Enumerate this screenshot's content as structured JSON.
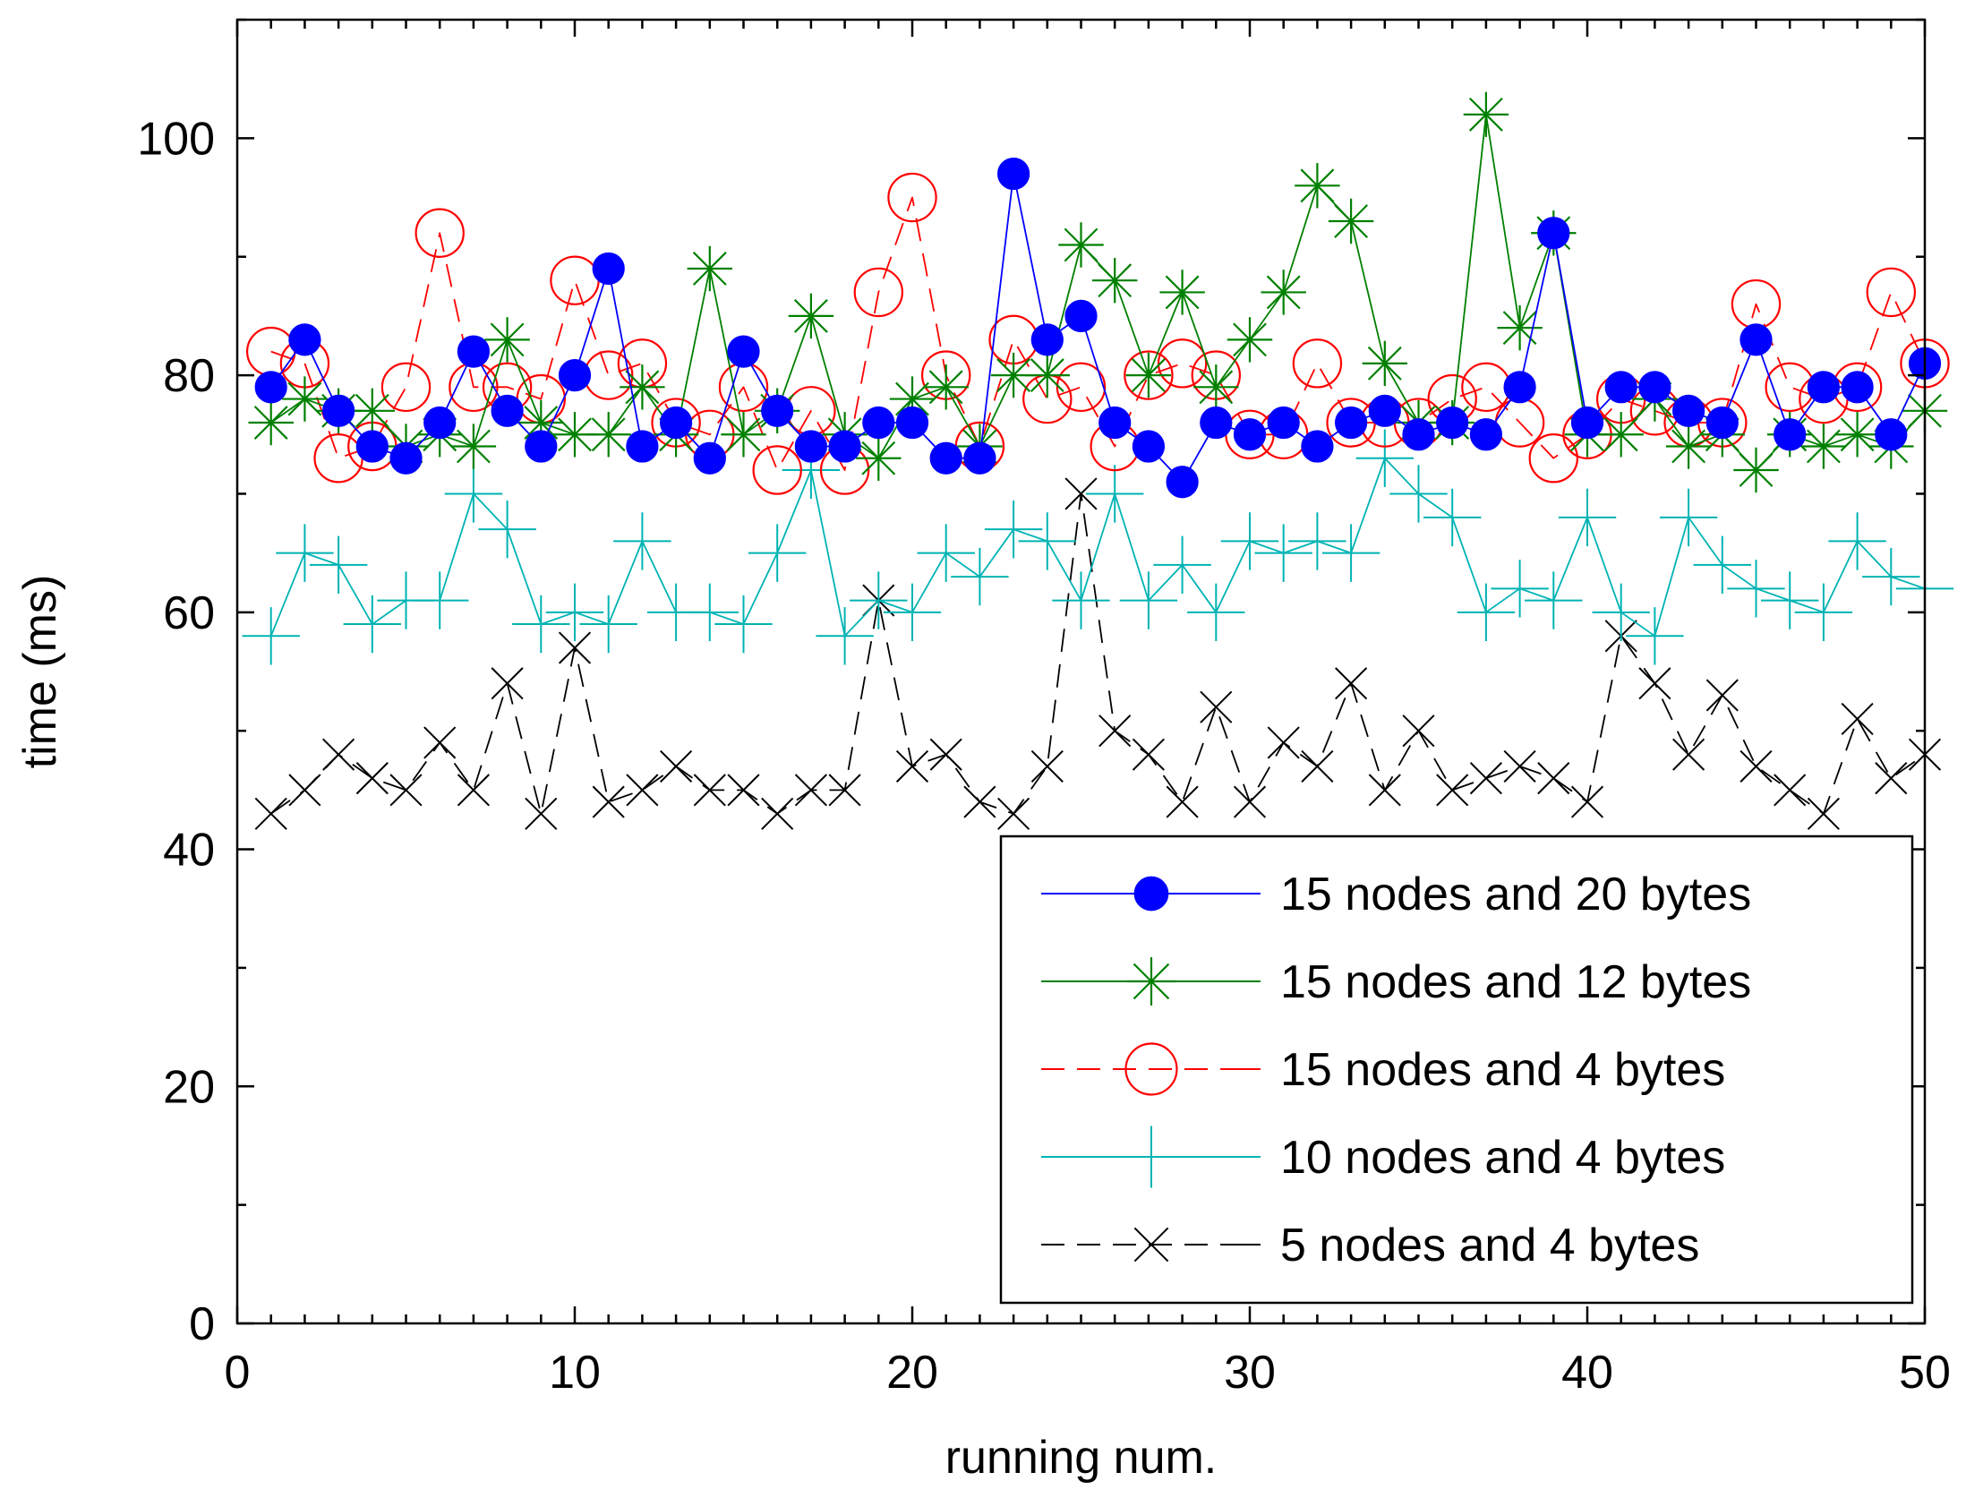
{
  "chart_data": {
    "type": "line",
    "title": "",
    "xlabel": "running num.",
    "ylabel": "time (ms)",
    "xlim": [
      0,
      50
    ],
    "ylim": [
      0,
      110
    ],
    "xticks": [
      0,
      10,
      20,
      30,
      40,
      50
    ],
    "yticks": [
      0,
      20,
      40,
      60,
      80,
      100
    ],
    "xtick_labels": [
      "0",
      "10",
      "20",
      "30",
      "40",
      "50"
    ],
    "ytick_labels": [
      "0",
      "20",
      "40",
      "60",
      "80",
      "100"
    ],
    "grid": false,
    "legend_position": "bottom-right",
    "x": [
      1,
      2,
      3,
      4,
      5,
      6,
      7,
      8,
      9,
      10,
      11,
      12,
      13,
      14,
      15,
      16,
      17,
      18,
      19,
      20,
      21,
      22,
      23,
      24,
      25,
      26,
      27,
      28,
      29,
      30,
      31,
      32,
      33,
      34,
      35,
      36,
      37,
      38,
      39,
      40,
      41,
      42,
      43,
      44,
      45,
      46,
      47,
      48,
      49,
      50
    ],
    "series": [
      {
        "name": "15 nodes and 20 bytes",
        "color": "#0000ff",
        "marker": "filled-circle",
        "dash": "solid",
        "values": [
          79,
          83,
          77,
          74,
          73,
          76,
          82,
          77,
          74,
          80,
          89,
          74,
          76,
          73,
          82,
          77,
          74,
          74,
          76,
          76,
          73,
          73,
          97,
          83,
          85,
          76,
          74,
          71,
          76,
          75,
          76,
          74,
          76,
          77,
          75,
          76,
          75,
          79,
          92,
          76,
          79,
          79,
          77,
          76,
          83,
          75,
          79,
          79,
          75,
          81
        ]
      },
      {
        "name": "15 nodes and 12 bytes",
        "color": "#008000",
        "marker": "star",
        "dash": "solid",
        "values": [
          76,
          78,
          77,
          77,
          74,
          75,
          74,
          83,
          76,
          75,
          75,
          79,
          75,
          89,
          75,
          77,
          85,
          75,
          73,
          78,
          79,
          74,
          80,
          80,
          91,
          88,
          80,
          87,
          79,
          83,
          87,
          96,
          93,
          81,
          76,
          76,
          102,
          84,
          92,
          75,
          75,
          78,
          74,
          75,
          72,
          75,
          74,
          75,
          74,
          77
        ]
      },
      {
        "name": "15 nodes and 4 bytes",
        "color": "#ff0000",
        "marker": "open-circle",
        "dash": "dashed",
        "values": [
          82,
          81,
          73,
          74,
          79,
          92,
          79,
          79,
          78,
          88,
          80,
          81,
          76,
          75,
          79,
          72,
          77,
          72,
          87,
          95,
          80,
          74,
          83,
          78,
          79,
          74,
          80,
          81,
          80,
          75,
          75,
          81,
          76,
          76,
          76,
          78,
          79,
          76,
          73,
          75,
          78,
          77,
          76,
          76,
          86,
          79,
          78,
          79,
          87,
          81
        ]
      },
      {
        "name": "10 nodes and 4 bytes",
        "color": "#00b3b3",
        "marker": "plus",
        "dash": "solid",
        "values": [
          58,
          65,
          64,
          59,
          61,
          61,
          70,
          67,
          59,
          60,
          59,
          66,
          60,
          60,
          59,
          65,
          72,
          58,
          61,
          60,
          65,
          63,
          67,
          66,
          61,
          70,
          61,
          64,
          60,
          66,
          65,
          66,
          65,
          73,
          70,
          68,
          60,
          62,
          61,
          68,
          60,
          58,
          68,
          64,
          62,
          61,
          60,
          66,
          63,
          62
        ]
      },
      {
        "name": "5 nodes and 4 bytes",
        "color": "#000000",
        "marker": "x",
        "dash": "dashed",
        "values": [
          43,
          45,
          48,
          46,
          45,
          49,
          45,
          54,
          43,
          57,
          44,
          45,
          47,
          45,
          45,
          43,
          45,
          45,
          61,
          47,
          48,
          44,
          43,
          47,
          70,
          50,
          48,
          44,
          52,
          44,
          49,
          47,
          54,
          45,
          50,
          45,
          46,
          47,
          46,
          44,
          58,
          54,
          48,
          53,
          47,
          45,
          43,
          51,
          46,
          48
        ]
      }
    ]
  }
}
